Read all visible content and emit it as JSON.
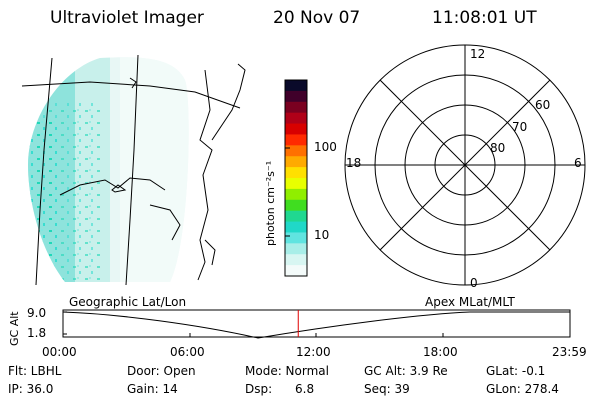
{
  "header": {
    "instrument": "Ultraviolet Imager",
    "date": "20 Nov 07",
    "time": "11:08:01 UT"
  },
  "colorbar": {
    "unit_label": "photon cm⁻²s⁻¹",
    "ticks": [
      "100",
      "10"
    ],
    "colors": [
      "#0a0a2a",
      "#40002a",
      "#7a0020",
      "#b00018",
      "#d80000",
      "#ff2a00",
      "#ff7000",
      "#ffaa00",
      "#ffe000",
      "#e8ff00",
      "#90ee00",
      "#40dd20",
      "#20d890",
      "#20d8c8",
      "#60e4e0",
      "#a8eee8",
      "#d8f6f2",
      "#f4fbfa"
    ]
  },
  "polar_plot": {
    "mlt_labels": {
      "top": "12",
      "left": "18",
      "right": "6",
      "bottom": "0"
    },
    "lat_labels": [
      "60",
      "70",
      "80"
    ]
  },
  "timeline": {
    "left_label": "Geographic Lat/Lon",
    "right_label": "Apex MLat/MLT",
    "axis_title": "GC Alt",
    "y_ticks": [
      "9.0",
      "1.8"
    ],
    "x_ticks": [
      "00:00",
      "06:00",
      "12:00",
      "18:00",
      "23:59"
    ],
    "current_time_fraction": 0.464
  },
  "info": {
    "flt": "Flt: LBHL",
    "door": "Door: Open",
    "mode": "Mode: Normal",
    "gc_alt": "GC Alt: 3.9 Re",
    "glat": "GLat:  -0.1",
    "ip": "IP: 36.0",
    "gain": "Gain: 14",
    "dsp": "Dsp:      6.8",
    "seq": "Seq: 39",
    "glon": "GLon: 278.4"
  }
}
